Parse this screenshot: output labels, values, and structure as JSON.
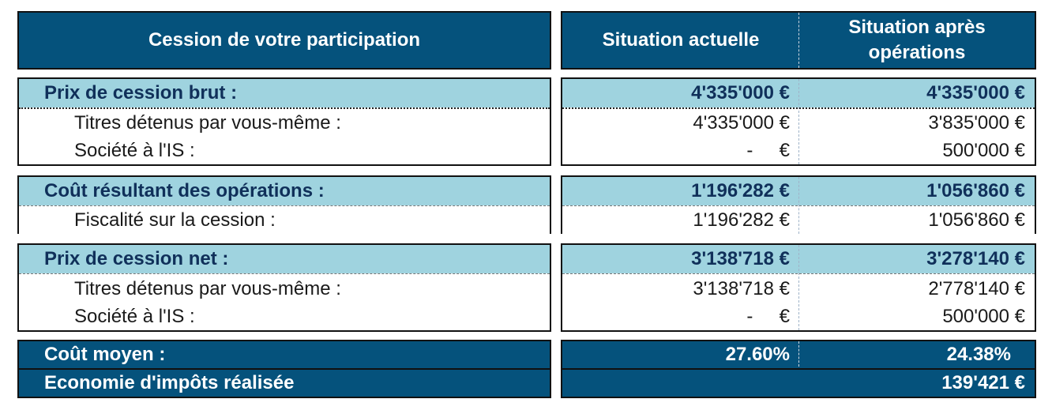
{
  "header": {
    "left": "Cession de votre participation",
    "col1": "Situation actuelle",
    "col2": "Situation après opérations"
  },
  "section1": {
    "title": "Prix de cession brut :",
    "total": [
      "4'335'000 €",
      "4'335'000 €"
    ],
    "rows": [
      {
        "label": "Titres détenus par vous-même :",
        "v1": "4'335'000 €",
        "v2": "3'835'000 €"
      },
      {
        "label": "Société à l'IS :",
        "v1": "-     €",
        "v2": "500'000 €"
      }
    ]
  },
  "section2": {
    "title": "Coût résultant des opérations :",
    "total": [
      "1'196'282 €",
      "1'056'860 €"
    ],
    "rows": [
      {
        "label": "Fiscalité sur la cession :",
        "v1": "1'196'282 €",
        "v2": "1'056'860 €"
      }
    ]
  },
  "section3": {
    "title": "Prix de cession net :",
    "total": [
      "3'138'718 €",
      "3'278'140 €"
    ],
    "rows": [
      {
        "label": "Titres détenus par vous-même :",
        "v1": "3'138'718 €",
        "v2": "2'778'140 €"
      },
      {
        "label": "Société à l'IS :",
        "v1": "-     €",
        "v2": "500'000 €"
      }
    ]
  },
  "footer": {
    "avg_label": "Coût moyen :",
    "avg_v1": "27.60%",
    "avg_v2": "24.38%",
    "savings_label": "Economie d'impôts réalisée",
    "savings_value": "139'421 €"
  },
  "colors": {
    "dark": "#05527c",
    "light": "#9fd3df"
  }
}
